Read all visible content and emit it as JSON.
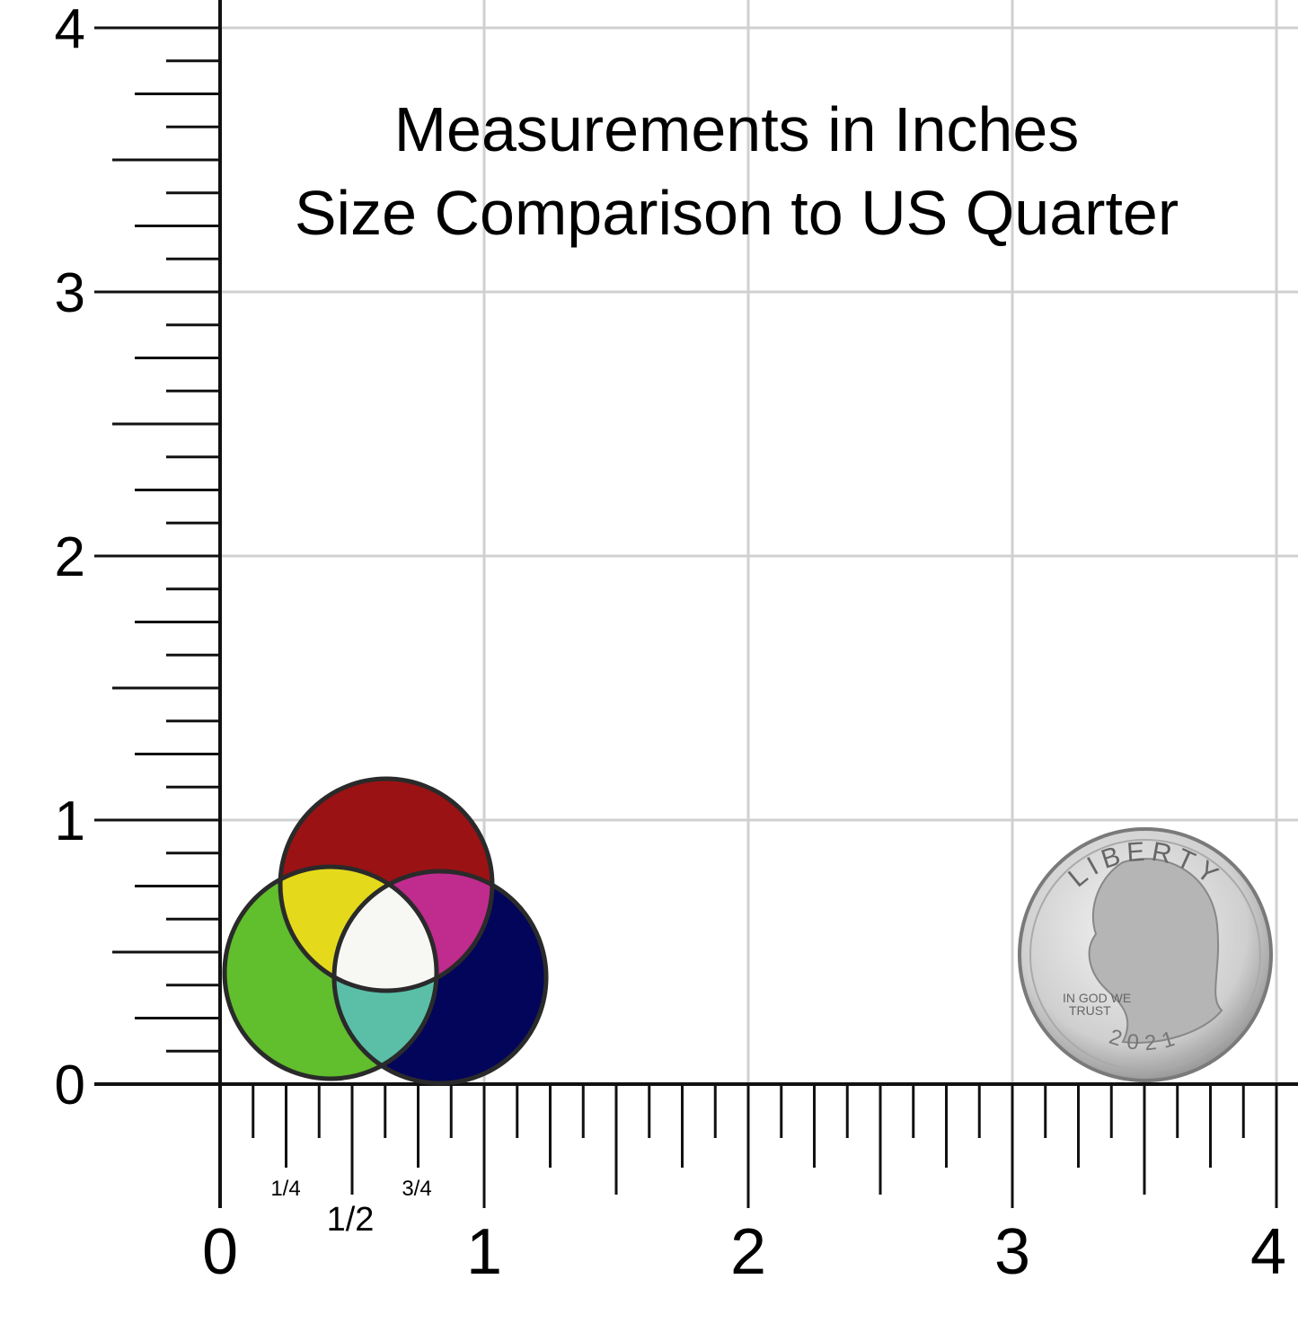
{
  "title": [
    "Measurements in Inches",
    "Size Comparison to US Quarter"
  ],
  "y_axis": {
    "labels": [
      "0",
      "1",
      "2",
      "3",
      "4"
    ]
  },
  "x_axis": {
    "labels": [
      "0",
      "1",
      "2",
      "3",
      "4"
    ],
    "fraction_labels": [
      "1/4",
      "1/2",
      "3/4"
    ]
  },
  "coin": {
    "top_text": "LIBERTY",
    "motto": [
      "IN GOD WE",
      "TRUST"
    ],
    "year": "2021"
  }
}
